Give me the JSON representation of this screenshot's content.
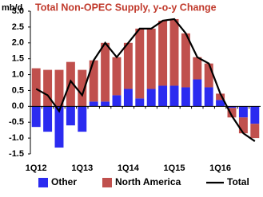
{
  "chart_data": {
    "type": "bar_line",
    "title": "Total Non-OPEC Supply, y-o-y Change",
    "y_label": "mb/d",
    "title_color": "#c0392b",
    "categories": [
      "1Q12",
      null,
      null,
      null,
      "1Q13",
      null,
      null,
      null,
      "1Q14",
      null,
      null,
      null,
      "1Q15",
      null,
      null,
      null,
      "1Q16",
      null,
      null,
      null
    ],
    "series": [
      {
        "name": "Other",
        "color": "#2b2bf0",
        "values": [
          -0.65,
          -0.8,
          -1.3,
          -0.6,
          -0.8,
          0.15,
          0.15,
          0.35,
          0.55,
          0.25,
          0.55,
          0.65,
          0.65,
          0.6,
          0.85,
          0.6,
          0.2,
          -0.05,
          -0.35,
          -0.55
        ]
      },
      {
        "name": "North America",
        "color": "#c0504d",
        "values": [
          1.2,
          1.15,
          1.15,
          1.4,
          1.15,
          1.3,
          1.85,
          1.2,
          1.45,
          2.2,
          1.9,
          2.05,
          2.1,
          1.7,
          0.7,
          0.75,
          0.2,
          -0.3,
          -0.5,
          -0.45
        ]
      },
      {
        "name": "Total",
        "color": "#000000",
        "type": "line",
        "values": [
          0.55,
          0.35,
          -0.15,
          0.8,
          0.35,
          1.45,
          2.0,
          1.55,
          2.0,
          2.45,
          2.45,
          2.7,
          2.75,
          2.3,
          1.55,
          1.35,
          0.4,
          -0.3,
          -0.85,
          -1.1
        ]
      }
    ],
    "ylim": [
      -1.5,
      3.0
    ],
    "yticks": [
      -1.5,
      {
        "value": -1,
        "label": "-1.0"
      },
      -0.5,
      {
        "value": 0,
        "label": "0.0"
      },
      0.5,
      {
        "value": 1,
        "label": "1.0"
      },
      1.5,
      {
        "value": 2,
        "label": "2.0"
      },
      2.5,
      {
        "value": 3,
        "label": "3.0"
      }
    ],
    "legend": "bottom"
  }
}
